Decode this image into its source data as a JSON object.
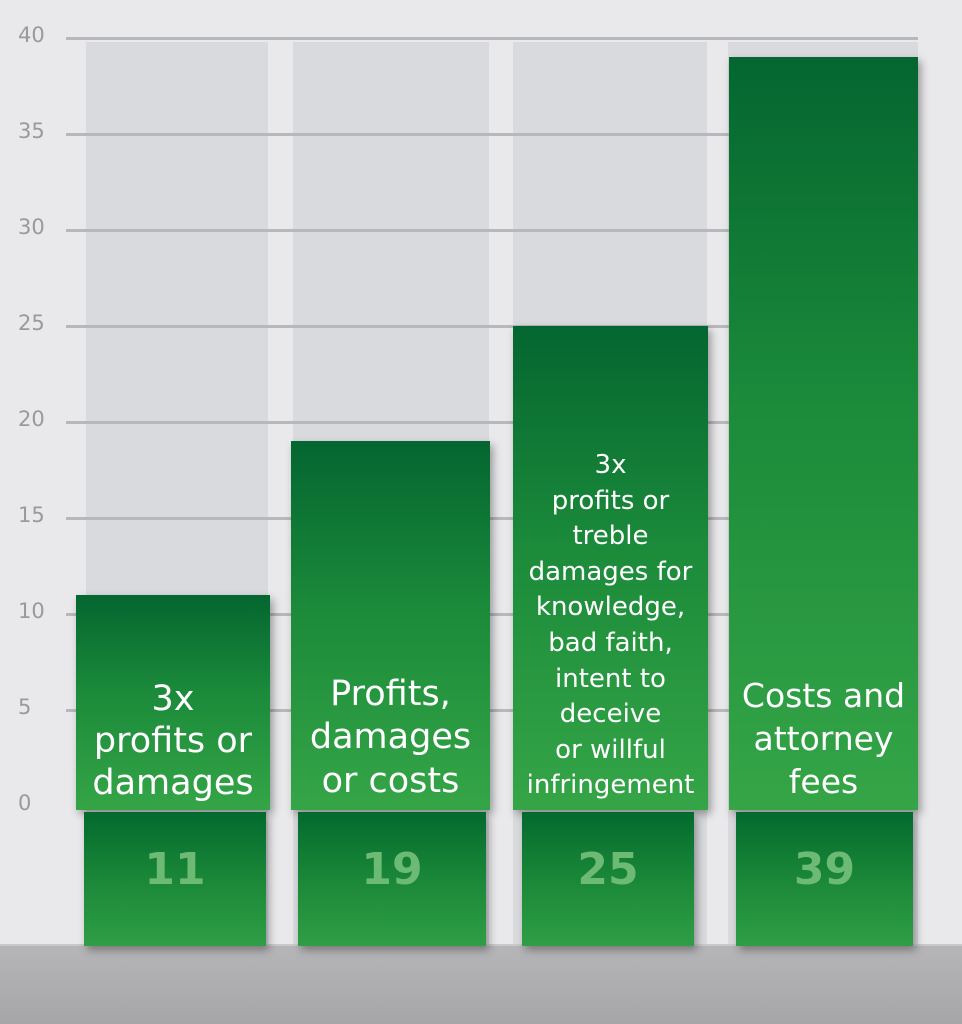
{
  "chart_data": {
    "type": "bar",
    "title": "",
    "xlabel": "",
    "ylabel": "",
    "ylim": [
      0,
      40
    ],
    "yticks": [
      0,
      5,
      10,
      15,
      20,
      25,
      30,
      35,
      40
    ],
    "grid": true,
    "categories": [
      "3x profits or damages",
      "Profits, damages or costs",
      "3x profits or treble damages for knowledge, bad faith, intent to deceive or willful infringement",
      "Costs and attorney fees"
    ],
    "category_lines": [
      [
        "3x",
        "profits or",
        "damages"
      ],
      [
        "Profits,",
        "damages",
        "or costs"
      ],
      [
        "3x",
        "profits or",
        "treble",
        "damages for",
        "knowledge,",
        "bad faith,",
        "intent to",
        "deceive",
        "or willful",
        "infringement"
      ],
      [
        "Costs and",
        "attorney",
        "fees"
      ]
    ],
    "values": [
      11,
      19,
      25,
      39
    ],
    "value_labels": [
      "11",
      "19",
      "25",
      "39"
    ]
  },
  "colors": {
    "bar_top": "#046630",
    "bar_bottom": "#35a547",
    "value_text": "#6dba75",
    "label_text": "#ffffff",
    "column_bg": "#d9dadd",
    "gridline": "#b7b8bb",
    "page_bg": "#e9e9eb",
    "floor": "#b0b0b2"
  }
}
